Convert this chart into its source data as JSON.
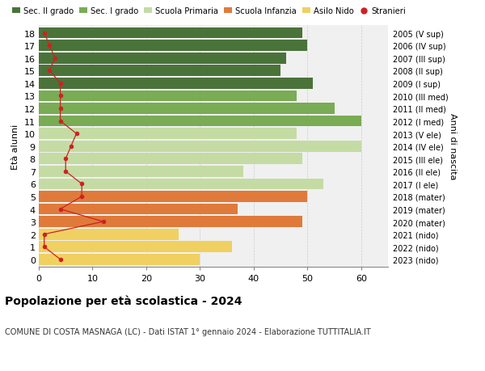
{
  "ages": [
    18,
    17,
    16,
    15,
    14,
    13,
    12,
    11,
    10,
    9,
    8,
    7,
    6,
    5,
    4,
    3,
    2,
    1,
    0
  ],
  "bar_values": [
    49,
    50,
    46,
    45,
    51,
    48,
    55,
    60,
    48,
    60,
    49,
    38,
    53,
    50,
    37,
    49,
    26,
    36,
    30
  ],
  "bar_colors": [
    "#4a7339",
    "#4a7339",
    "#4a7339",
    "#4a7339",
    "#4a7339",
    "#7aab55",
    "#7aab55",
    "#7aab55",
    "#c5dba4",
    "#c5dba4",
    "#c5dba4",
    "#c5dba4",
    "#c5dba4",
    "#e07a3a",
    "#e07a3a",
    "#e07a3a",
    "#f0d060",
    "#f0d060",
    "#f0d060"
  ],
  "stranieri_values": [
    1,
    2,
    3,
    2,
    4,
    4,
    4,
    4,
    7,
    6,
    5,
    5,
    8,
    8,
    4,
    12,
    1,
    1,
    4
  ],
  "right_labels": [
    "2005 (V sup)",
    "2006 (IV sup)",
    "2007 (III sup)",
    "2008 (II sup)",
    "2009 (I sup)",
    "2010 (III med)",
    "2011 (II med)",
    "2012 (I med)",
    "2013 (V ele)",
    "2014 (IV ele)",
    "2015 (III ele)",
    "2016 (II ele)",
    "2017 (I ele)",
    "2018 (mater)",
    "2019 (mater)",
    "2020 (mater)",
    "2021 (nido)",
    "2022 (nido)",
    "2023 (nido)"
  ],
  "legend_labels": [
    "Sec. II grado",
    "Sec. I grado",
    "Scuola Primaria",
    "Scuola Infanzia",
    "Asilo Nido",
    "Stranieri"
  ],
  "legend_colors": [
    "#4a7339",
    "#7aab55",
    "#c5dba4",
    "#e07a3a",
    "#f0d060",
    "#cc2222"
  ],
  "stranieri_color": "#cc2222",
  "xlabel_ticks": [
    0,
    10,
    20,
    30,
    40,
    50,
    60
  ],
  "title": "Popolazione per età scolastica - 2024",
  "subtitle": "COMUNE DI COSTA MASNAGA (LC) - Dati ISTAT 1° gennaio 2024 - Elaborazione TUTTITALIA.IT",
  "ylabel": "Età alunni",
  "right_ylabel": "Anni di nascita",
  "bg_color": "#ffffff",
  "bar_bg_color": "#f0f0f0"
}
